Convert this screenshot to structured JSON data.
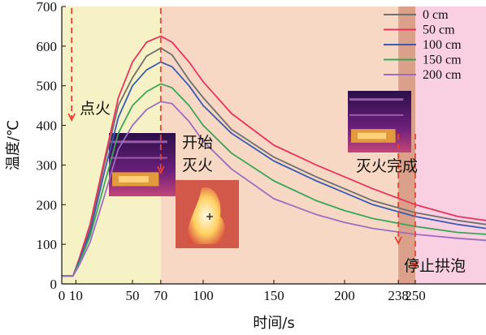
{
  "chart_data": {
    "type": "line",
    "xlabel": "时间/s",
    "ylabel": "温度/℃",
    "xlim": [
      0,
      300
    ],
    "ylim": [
      0,
      700
    ],
    "x_ticks": [
      0,
      10,
      50,
      70,
      100,
      150,
      200,
      238,
      250
    ],
    "y_ticks": [
      0,
      100,
      200,
      300,
      400,
      500,
      600,
      700
    ],
    "legend_position": "top-right",
    "phases": [
      {
        "start": 0,
        "end": 70,
        "color": "#f6f2c6"
      },
      {
        "start": 70,
        "end": 238,
        "color": "#f7d8c4"
      },
      {
        "start": 238,
        "end": 250,
        "color": "#dba089"
      },
      {
        "start": 250,
        "end": 300,
        "color": "#f9cfe2"
      }
    ],
    "annotations": [
      {
        "text": "点火",
        "x": 7
      },
      {
        "text": "开始",
        "x": 70
      },
      {
        "text": "灭火",
        "x": 70
      },
      {
        "text": "灭火完成",
        "x": 238
      },
      {
        "text": "停止拱泡",
        "x": 250
      }
    ],
    "event_markers": [
      7,
      70,
      238,
      250
    ],
    "series": [
      {
        "name": "0 cm",
        "color": "#6f6f6f",
        "x": [
          0,
          8,
          12,
          20,
          30,
          40,
          50,
          60,
          70,
          78,
          90,
          100,
          120,
          150,
          180,
          200,
          220,
          250,
          280,
          300
        ],
        "y": [
          20,
          20,
          60,
          140,
          300,
          450,
          520,
          575,
          595,
          578,
          515,
          470,
          390,
          320,
          270,
          240,
          210,
          180,
          160,
          150
        ]
      },
      {
        "name": "50 cm",
        "color": "#e8335e",
        "x": [
          0,
          8,
          12,
          20,
          30,
          40,
          50,
          60,
          70,
          78,
          90,
          100,
          120,
          150,
          180,
          200,
          220,
          250,
          280,
          300
        ],
        "y": [
          20,
          20,
          60,
          150,
          310,
          470,
          560,
          610,
          625,
          610,
          560,
          510,
          430,
          350,
          300,
          270,
          240,
          200,
          170,
          160
        ]
      },
      {
        "name": "100 cm",
        "color": "#3a5bb0",
        "x": [
          0,
          8,
          12,
          20,
          30,
          40,
          50,
          60,
          70,
          78,
          90,
          100,
          120,
          150,
          180,
          200,
          220,
          250,
          280,
          300
        ],
        "y": [
          20,
          20,
          55,
          130,
          280,
          420,
          500,
          540,
          560,
          548,
          500,
          450,
          380,
          310,
          260,
          230,
          200,
          170,
          150,
          140
        ]
      },
      {
        "name": "150 cm",
        "color": "#3aa655",
        "x": [
          0,
          8,
          12,
          20,
          30,
          40,
          50,
          60,
          70,
          78,
          90,
          100,
          120,
          150,
          180,
          200,
          220,
          250,
          280,
          300
        ],
        "y": [
          20,
          20,
          50,
          120,
          250,
          380,
          450,
          485,
          505,
          495,
          450,
          400,
          330,
          260,
          210,
          185,
          165,
          145,
          130,
          125
        ]
      },
      {
        "name": "200 cm",
        "color": "#9b6fc0",
        "x": [
          0,
          8,
          12,
          20,
          30,
          40,
          50,
          60,
          70,
          78,
          90,
          100,
          120,
          150,
          180,
          200,
          220,
          250,
          280,
          300
        ],
        "y": [
          20,
          20,
          45,
          105,
          220,
          340,
          400,
          440,
          460,
          455,
          410,
          360,
          290,
          215,
          175,
          155,
          140,
          125,
          115,
          110
        ]
      }
    ]
  }
}
